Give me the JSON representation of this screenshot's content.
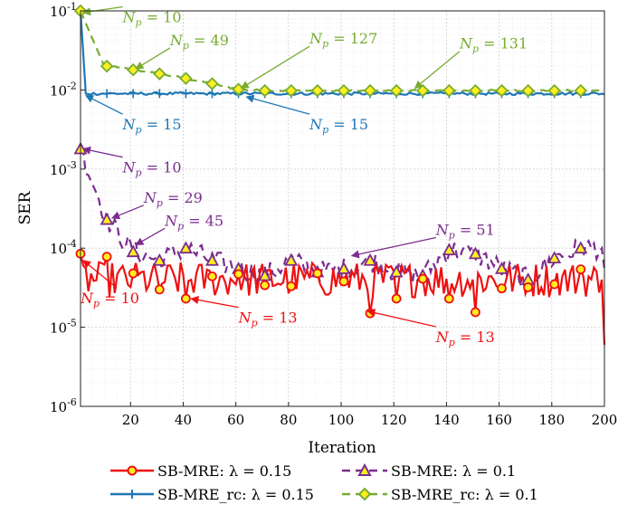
{
  "chart_data": {
    "type": "line",
    "xlabel": "Iteration",
    "ylabel": "SER",
    "xlim": [
      1,
      200
    ],
    "ylim": [
      1e-06,
      0.1
    ],
    "yscale": "log",
    "grid": true,
    "legend_position": "bottom",
    "x_ticks": [
      "20",
      "40",
      "60",
      "80",
      "100",
      "120",
      "140",
      "160",
      "180",
      "200"
    ],
    "y_ticks": [
      {
        "base": "10",
        "exp": "-6"
      },
      {
        "base": "10",
        "exp": "-5"
      },
      {
        "base": "10",
        "exp": "-4"
      },
      {
        "base": "10",
        "exp": "-3"
      },
      {
        "base": "10",
        "exp": "-2"
      },
      {
        "base": "10",
        "exp": "-1"
      }
    ],
    "series": [
      {
        "name": "SB-MRE: λ = 0.15",
        "color": "#ee1111",
        "marker": "circle",
        "marker_fill": "#ffee22",
        "line_style": "solid",
        "marker_x": [
          1,
          11,
          21,
          31,
          41,
          51,
          61,
          71,
          81,
          91,
          101,
          111,
          121,
          131,
          141,
          151,
          161,
          171,
          181,
          191
        ],
        "marker_y": [
          8.5e-05,
          7.8e-05,
          4.8e-05,
          3e-05,
          2.3e-05,
          4.4e-05,
          4.7e-05,
          3.4e-05,
          3.3e-05,
          4.8e-05,
          3.8e-05,
          1.5e-05,
          2.3e-05,
          4.1e-05,
          2.3e-05,
          1.55e-05,
          3.1e-05,
          3.2e-05,
          3.5e-05,
          5.4e-05
        ],
        "end_value": 6e-06
      },
      {
        "name": "SB-MRE: λ = 0.1",
        "color": "#7b2d8e",
        "marker": "triangle",
        "marker_fill": "#ffee22",
        "line_style": "dashed",
        "marker_x": [
          1,
          11,
          21,
          31,
          41,
          51,
          61,
          71,
          81,
          91,
          101,
          111,
          121,
          131,
          141,
          151,
          161,
          171,
          181,
          191
        ],
        "marker_y": [
          0.0018,
          0.00023,
          9e-05,
          7e-05,
          0.0001,
          7e-05,
          5.5e-05,
          4.5e-05,
          7e-05,
          5e-05,
          5.5e-05,
          7e-05,
          5e-05,
          4.5e-05,
          9.5e-05,
          8.5e-05,
          5.5e-05,
          4e-05,
          7.5e-05,
          0.0001
        ],
        "end_value": 5.5e-05
      },
      {
        "name": "SB-MRE_rc: λ = 0.15",
        "color": "#1f77b4",
        "marker": "plus",
        "line_style": "solid",
        "start_value": 0.1,
        "plateau_value": 0.009
      },
      {
        "name": "SB-MRE_rc: λ = 0.1",
        "color": "#77ac30",
        "marker": "diamond",
        "marker_fill": "#ffee22",
        "line_style": "dashed",
        "marker_x": [
          1,
          11,
          21,
          31,
          41,
          51,
          61,
          71,
          81,
          91,
          101,
          111,
          121,
          131,
          141,
          151,
          161,
          171,
          181,
          191
        ],
        "marker_y": [
          0.1,
          0.02,
          0.018,
          0.016,
          0.014,
          0.012,
          0.0102,
          0.0098,
          0.0098,
          0.0098,
          0.0098,
          0.0098,
          0.0098,
          0.0098,
          0.0098,
          0.0098,
          0.0098,
          0.0098,
          0.0098,
          0.0098
        ]
      }
    ],
    "annotations": [
      {
        "text": "10",
        "series": 3,
        "tip": [
          2,
          0.095
        ],
        "label": [
          17,
          0.082
        ]
      },
      {
        "text": "49",
        "series": 3,
        "tip": [
          22,
          0.0185
        ],
        "label": [
          35,
          0.042
        ]
      },
      {
        "text": "127",
        "series": 3,
        "tip": [
          62,
          0.0105
        ],
        "label": [
          88,
          0.044
        ]
      },
      {
        "text": "131",
        "series": 3,
        "tip": [
          128,
          0.0105
        ],
        "label": [
          145,
          0.038
        ]
      },
      {
        "text": "15",
        "series": 2,
        "tip": [
          3,
          0.0085
        ],
        "label": [
          17,
          0.0036
        ]
      },
      {
        "text": "15",
        "series": 2,
        "tip": [
          64,
          0.0082
        ],
        "label": [
          88,
          0.0036
        ]
      },
      {
        "text": "10",
        "series": 1,
        "tip": [
          2,
          0.0018
        ],
        "label": [
          17,
          0.00103
        ]
      },
      {
        "text": "29",
        "series": 1,
        "tip": [
          13,
          0.00024
        ],
        "label": [
          25,
          0.00043
        ]
      },
      {
        "text": "45",
        "series": 1,
        "tip": [
          22,
          0.00011
        ],
        "label": [
          33,
          0.00022
        ]
      },
      {
        "text": "51",
        "series": 1,
        "tip": [
          104,
          8e-05
        ],
        "label": [
          136,
          0.000168
        ]
      },
      {
        "text": "10",
        "series": 0,
        "tip": [
          2,
          7e-05
        ],
        "label": [
          1,
          2.3e-05
        ]
      },
      {
        "text": "13",
        "series": 0,
        "tip": [
          43,
          2.3e-05
        ],
        "label": [
          61,
          1.3e-05
        ]
      },
      {
        "text": "13",
        "series": 0,
        "tip": [
          110,
          1.6e-05
        ],
        "label": [
          136,
          7.4e-06
        ]
      }
    ],
    "annotation_prefix": "N",
    "annotation_subscript": "p",
    "annotation_infix": " = "
  }
}
